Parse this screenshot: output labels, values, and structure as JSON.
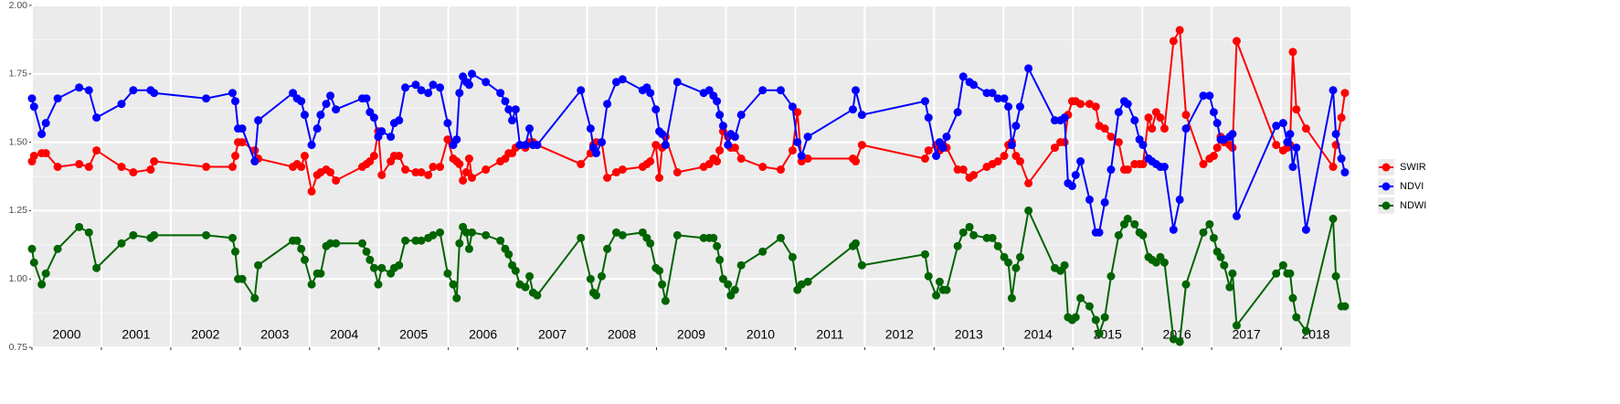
{
  "chart_data": {
    "type": "line",
    "x": [
      2000.0,
      2000.03,
      2000.14,
      2000.2,
      2000.37,
      2000.68,
      2000.82,
      2000.93,
      2001.29,
      2001.46,
      2001.71,
      2001.76,
      2002.51,
      2002.89,
      2002.93,
      2002.97,
      2003.03,
      2003.21,
      2003.26,
      2003.76,
      2003.82,
      2003.88,
      2003.93,
      2004.03,
      2004.11,
      2004.16,
      2004.24,
      2004.3,
      2004.38,
      2004.76,
      2004.82,
      2004.87,
      2004.93,
      2004.99,
      2005.04,
      2005.17,
      2005.22,
      2005.29,
      2005.38,
      2005.53,
      2005.61,
      2005.71,
      2005.78,
      2005.88,
      2005.99,
      2006.07,
      2006.12,
      2006.16,
      2006.21,
      2006.26,
      2006.3,
      2006.34,
      2006.54,
      2006.75,
      2006.82,
      2006.87,
      2006.92,
      2006.97,
      2007.03,
      2007.11,
      2007.17,
      2007.22,
      2007.28,
      2007.91,
      2008.05,
      2008.09,
      2008.13,
      2008.21,
      2008.29,
      2008.42,
      2008.51,
      2008.8,
      2008.86,
      2008.91,
      2008.99,
      2009.04,
      2009.08,
      2009.13,
      2009.3,
      2009.68,
      2009.76,
      2009.82,
      2009.87,
      2009.91,
      2009.96,
      2010.03,
      2010.07,
      2010.13,
      2010.22,
      2010.53,
      2010.79,
      2010.96,
      2011.03,
      2011.09,
      2011.18,
      2011.83,
      2011.87,
      2011.96,
      2012.87,
      2012.92,
      2013.03,
      2013.08,
      2013.13,
      2013.18,
      2013.34,
      2013.42,
      2013.51,
      2013.57,
      2013.76,
      2013.84,
      2013.92,
      2014.01,
      2014.07,
      2014.12,
      2014.18,
      2014.24,
      2014.36,
      2014.74,
      2014.82,
      2014.88,
      2014.93,
      2014.99,
      2015.04,
      2015.11,
      2015.24,
      2015.33,
      2015.38,
      2015.46,
      2015.55,
      2015.66,
      2015.74,
      2015.79,
      2015.89,
      2015.96,
      2016.01,
      2016.09,
      2016.14,
      2016.2,
      2016.26,
      2016.32,
      2016.45,
      2016.54,
      2016.63,
      2016.88,
      2016.97,
      2017.03,
      2017.08,
      2017.13,
      2017.18,
      2017.26,
      2017.3,
      2017.36,
      2017.93,
      2018.03,
      2018.09,
      2018.13,
      2018.17,
      2018.22,
      2018.36,
      2018.75,
      2018.79,
      2018.87,
      2018.92
    ],
    "series": [
      {
        "name": "SWIR",
        "color": "#ff0000",
        "values": [
          1.43,
          1.45,
          1.46,
          1.46,
          1.41,
          1.42,
          1.41,
          1.47,
          1.41,
          1.39,
          1.4,
          1.43,
          1.41,
          1.41,
          1.45,
          1.5,
          1.5,
          1.47,
          1.44,
          1.41,
          1.42,
          1.41,
          1.45,
          1.32,
          1.38,
          1.39,
          1.4,
          1.39,
          1.36,
          1.41,
          1.42,
          1.43,
          1.45,
          1.54,
          1.38,
          1.43,
          1.45,
          1.45,
          1.4,
          1.39,
          1.39,
          1.38,
          1.41,
          1.41,
          1.51,
          1.44,
          1.43,
          1.42,
          1.36,
          1.39,
          1.44,
          1.37,
          1.4,
          1.43,
          1.44,
          1.46,
          1.46,
          1.48,
          1.49,
          1.48,
          1.5,
          1.5,
          1.49,
          1.42,
          1.46,
          1.49,
          1.5,
          1.5,
          1.37,
          1.39,
          1.4,
          1.41,
          1.42,
          1.43,
          1.49,
          1.37,
          1.48,
          1.52,
          1.39,
          1.41,
          1.42,
          1.44,
          1.43,
          1.47,
          1.54,
          1.52,
          1.48,
          1.48,
          1.44,
          1.41,
          1.4,
          1.47,
          1.61,
          1.43,
          1.44,
          1.44,
          1.43,
          1.49,
          1.44,
          1.47,
          1.49,
          1.47,
          1.49,
          1.48,
          1.4,
          1.4,
          1.37,
          1.38,
          1.41,
          1.42,
          1.43,
          1.45,
          1.49,
          1.5,
          1.45,
          1.43,
          1.35,
          1.48,
          1.5,
          1.5,
          1.6,
          1.65,
          1.65,
          1.64,
          1.64,
          1.63,
          1.56,
          1.55,
          1.52,
          1.5,
          1.4,
          1.4,
          1.42,
          1.42,
          1.42,
          1.59,
          1.55,
          1.61,
          1.59,
          1.55,
          1.87,
          1.91,
          1.6,
          1.42,
          1.44,
          1.45,
          1.48,
          1.52,
          1.5,
          1.49,
          1.48,
          1.87,
          1.49,
          1.47,
          1.48,
          1.49,
          1.83,
          1.62,
          1.55,
          1.41,
          1.49,
          1.59,
          1.68
        ]
      },
      {
        "name": "NDVI",
        "color": "#0000ff",
        "values": [
          1.66,
          1.63,
          1.53,
          1.57,
          1.66,
          1.7,
          1.69,
          1.59,
          1.64,
          1.69,
          1.69,
          1.68,
          1.66,
          1.68,
          1.65,
          1.55,
          1.55,
          1.43,
          1.58,
          1.68,
          1.66,
          1.65,
          1.6,
          1.49,
          1.55,
          1.6,
          1.64,
          1.67,
          1.62,
          1.66,
          1.66,
          1.61,
          1.59,
          1.52,
          1.54,
          1.52,
          1.57,
          1.58,
          1.7,
          1.71,
          1.69,
          1.68,
          1.71,
          1.7,
          1.57,
          1.49,
          1.51,
          1.68,
          1.74,
          1.72,
          1.71,
          1.75,
          1.72,
          1.68,
          1.65,
          1.62,
          1.58,
          1.62,
          1.49,
          1.49,
          1.55,
          1.49,
          1.49,
          1.69,
          1.55,
          1.48,
          1.46,
          1.5,
          1.64,
          1.72,
          1.73,
          1.69,
          1.7,
          1.68,
          1.62,
          1.54,
          1.53,
          1.49,
          1.72,
          1.68,
          1.69,
          1.67,
          1.65,
          1.6,
          1.56,
          1.49,
          1.53,
          1.52,
          1.6,
          1.69,
          1.69,
          1.63,
          1.5,
          1.45,
          1.52,
          1.62,
          1.69,
          1.6,
          1.65,
          1.59,
          1.45,
          1.5,
          1.48,
          1.52,
          1.61,
          1.74,
          1.72,
          1.71,
          1.68,
          1.68,
          1.66,
          1.66,
          1.63,
          1.49,
          1.56,
          1.63,
          1.77,
          1.58,
          1.58,
          1.59,
          1.35,
          1.34,
          1.38,
          1.43,
          1.29,
          1.17,
          1.17,
          1.28,
          1.4,
          1.61,
          1.65,
          1.64,
          1.58,
          1.51,
          1.49,
          1.44,
          1.43,
          1.42,
          1.41,
          1.41,
          1.18,
          1.29,
          1.55,
          1.67,
          1.67,
          1.61,
          1.57,
          1.51,
          1.51,
          1.52,
          1.53,
          1.23,
          1.56,
          1.57,
          1.5,
          1.53,
          1.41,
          1.48,
          1.18,
          1.69,
          1.53,
          1.44,
          1.39
        ]
      },
      {
        "name": "NDWI",
        "color": "#006400",
        "values": [
          1.11,
          1.06,
          0.98,
          1.02,
          1.11,
          1.19,
          1.17,
          1.04,
          1.13,
          1.16,
          1.15,
          1.16,
          1.16,
          1.15,
          1.1,
          1.0,
          1.0,
          0.93,
          1.05,
          1.14,
          1.14,
          1.11,
          1.07,
          0.98,
          1.02,
          1.02,
          1.12,
          1.13,
          1.13,
          1.13,
          1.1,
          1.07,
          1.04,
          0.98,
          1.04,
          1.02,
          1.04,
          1.05,
          1.14,
          1.14,
          1.14,
          1.15,
          1.16,
          1.17,
          1.02,
          0.98,
          0.93,
          1.13,
          1.19,
          1.17,
          1.11,
          1.17,
          1.16,
          1.14,
          1.11,
          1.09,
          1.05,
          1.03,
          0.98,
          0.97,
          1.01,
          0.95,
          0.94,
          1.15,
          1.0,
          0.95,
          0.94,
          1.01,
          1.11,
          1.17,
          1.16,
          1.17,
          1.15,
          1.13,
          1.04,
          1.03,
          0.98,
          0.92,
          1.16,
          1.15,
          1.15,
          1.15,
          1.12,
          1.07,
          1.0,
          0.98,
          0.94,
          0.96,
          1.05,
          1.1,
          1.15,
          1.08,
          0.96,
          0.98,
          0.99,
          1.12,
          1.13,
          1.05,
          1.09,
          1.01,
          0.94,
          0.99,
          0.96,
          0.96,
          1.12,
          1.17,
          1.19,
          1.16,
          1.15,
          1.15,
          1.12,
          1.08,
          1.06,
          0.93,
          1.04,
          1.08,
          1.25,
          1.04,
          1.03,
          1.05,
          0.86,
          0.85,
          0.86,
          0.93,
          0.9,
          0.85,
          0.8,
          0.86,
          1.01,
          1.16,
          1.2,
          1.22,
          1.2,
          1.17,
          1.16,
          1.08,
          1.07,
          1.06,
          1.08,
          1.06,
          0.78,
          0.77,
          0.98,
          1.17,
          1.2,
          1.15,
          1.1,
          1.08,
          1.05,
          0.97,
          1.02,
          0.83,
          1.02,
          1.05,
          1.02,
          1.02,
          0.93,
          0.86,
          0.81,
          1.22,
          1.01,
          0.9,
          0.9
        ]
      }
    ],
    "xlim": [
      2000,
      2019
    ],
    "xticks": [
      {
        "value": 2000,
        "label": "2000"
      },
      {
        "value": 2001,
        "label": "2001"
      },
      {
        "value": 2002,
        "label": "2002"
      },
      {
        "value": 2003,
        "label": "2003"
      },
      {
        "value": 2004,
        "label": "2004"
      },
      {
        "value": 2005,
        "label": "2005"
      },
      {
        "value": 2006,
        "label": "2006"
      },
      {
        "value": 2007,
        "label": "2007"
      },
      {
        "value": 2008,
        "label": "2008"
      },
      {
        "value": 2009,
        "label": "2009"
      },
      {
        "value": 2010,
        "label": "2010"
      },
      {
        "value": 2011,
        "label": "2011"
      },
      {
        "value": 2012,
        "label": "2012"
      },
      {
        "value": 2013,
        "label": "2013"
      },
      {
        "value": 2014,
        "label": "2014"
      },
      {
        "value": 2015,
        "label": "2015"
      },
      {
        "value": 2016,
        "label": "2016"
      },
      {
        "value": 2017,
        "label": "2017"
      },
      {
        "value": 2018,
        "label": "2018"
      }
    ],
    "ylim": [
      0.75,
      2.0
    ],
    "yticks": [
      0.75,
      {
        "value": 1.0,
        "label": "1.00"
      },
      1.25,
      {
        "value": 1.5,
        "label": "1.50"
      },
      1.75,
      {
        "value": 2.0,
        "label": "2.00"
      }
    ],
    "grid": true,
    "legend": "right"
  }
}
